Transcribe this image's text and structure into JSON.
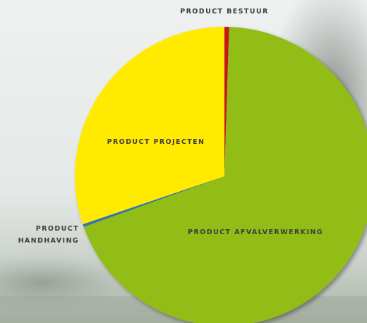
{
  "chart_data": {
    "type": "pie",
    "categories": [
      "PRODUCT BESTUUR",
      "PRODUCT AFVALVERWERKING",
      "PRODUCT HANDHAVING",
      "PRODUCT PROJECTEN"
    ],
    "values": [
      0.5,
      69,
      0.3,
      30.2
    ],
    "colors": [
      "#c4161c",
      "#92bd12",
      "#2f74b5",
      "#ffea00"
    ]
  }
}
